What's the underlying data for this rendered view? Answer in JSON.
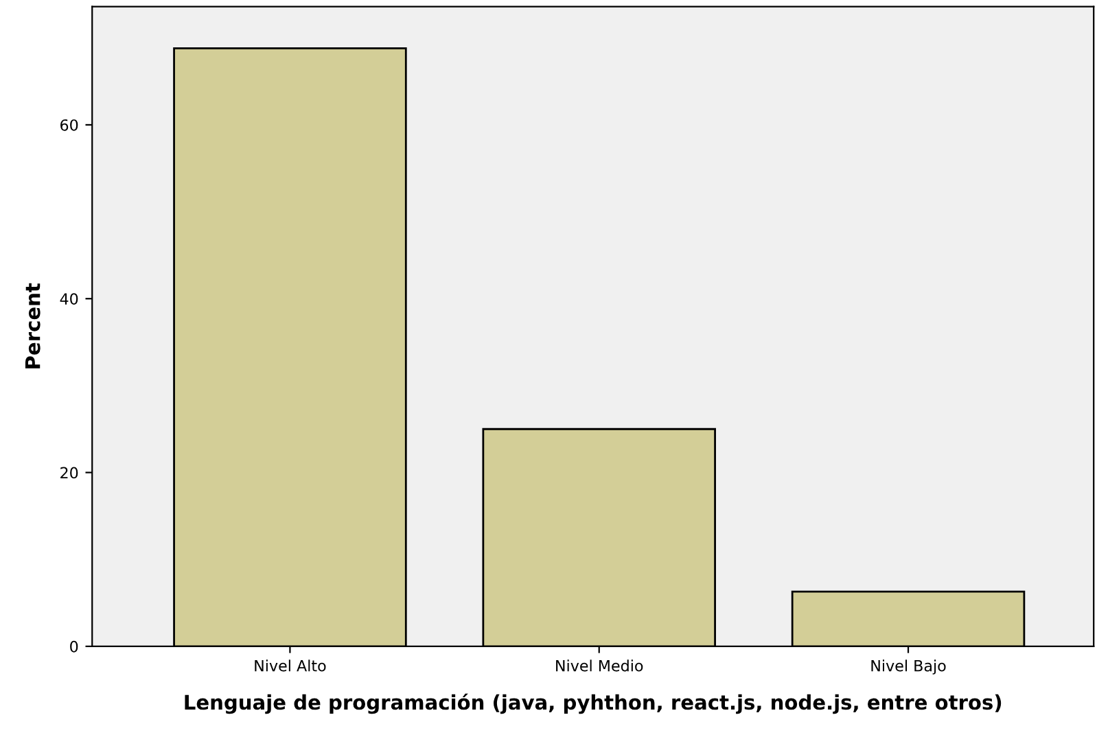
{
  "chart_data": {
    "type": "bar",
    "xlabel": "Lenguaje de programación (java, pyhthon, react.js, node.js, entre otros)",
    "ylabel": "Percent",
    "categories": [
      "Nivel Alto",
      "Nivel Medio",
      "Nivel Bajo"
    ],
    "values": [
      68.8,
      25.0,
      6.3
    ],
    "color": "#d3ce97",
    "ylim": [
      0,
      73.6
    ],
    "yticks": [
      0,
      20,
      40,
      60
    ],
    "grid": false,
    "legend": false
  }
}
